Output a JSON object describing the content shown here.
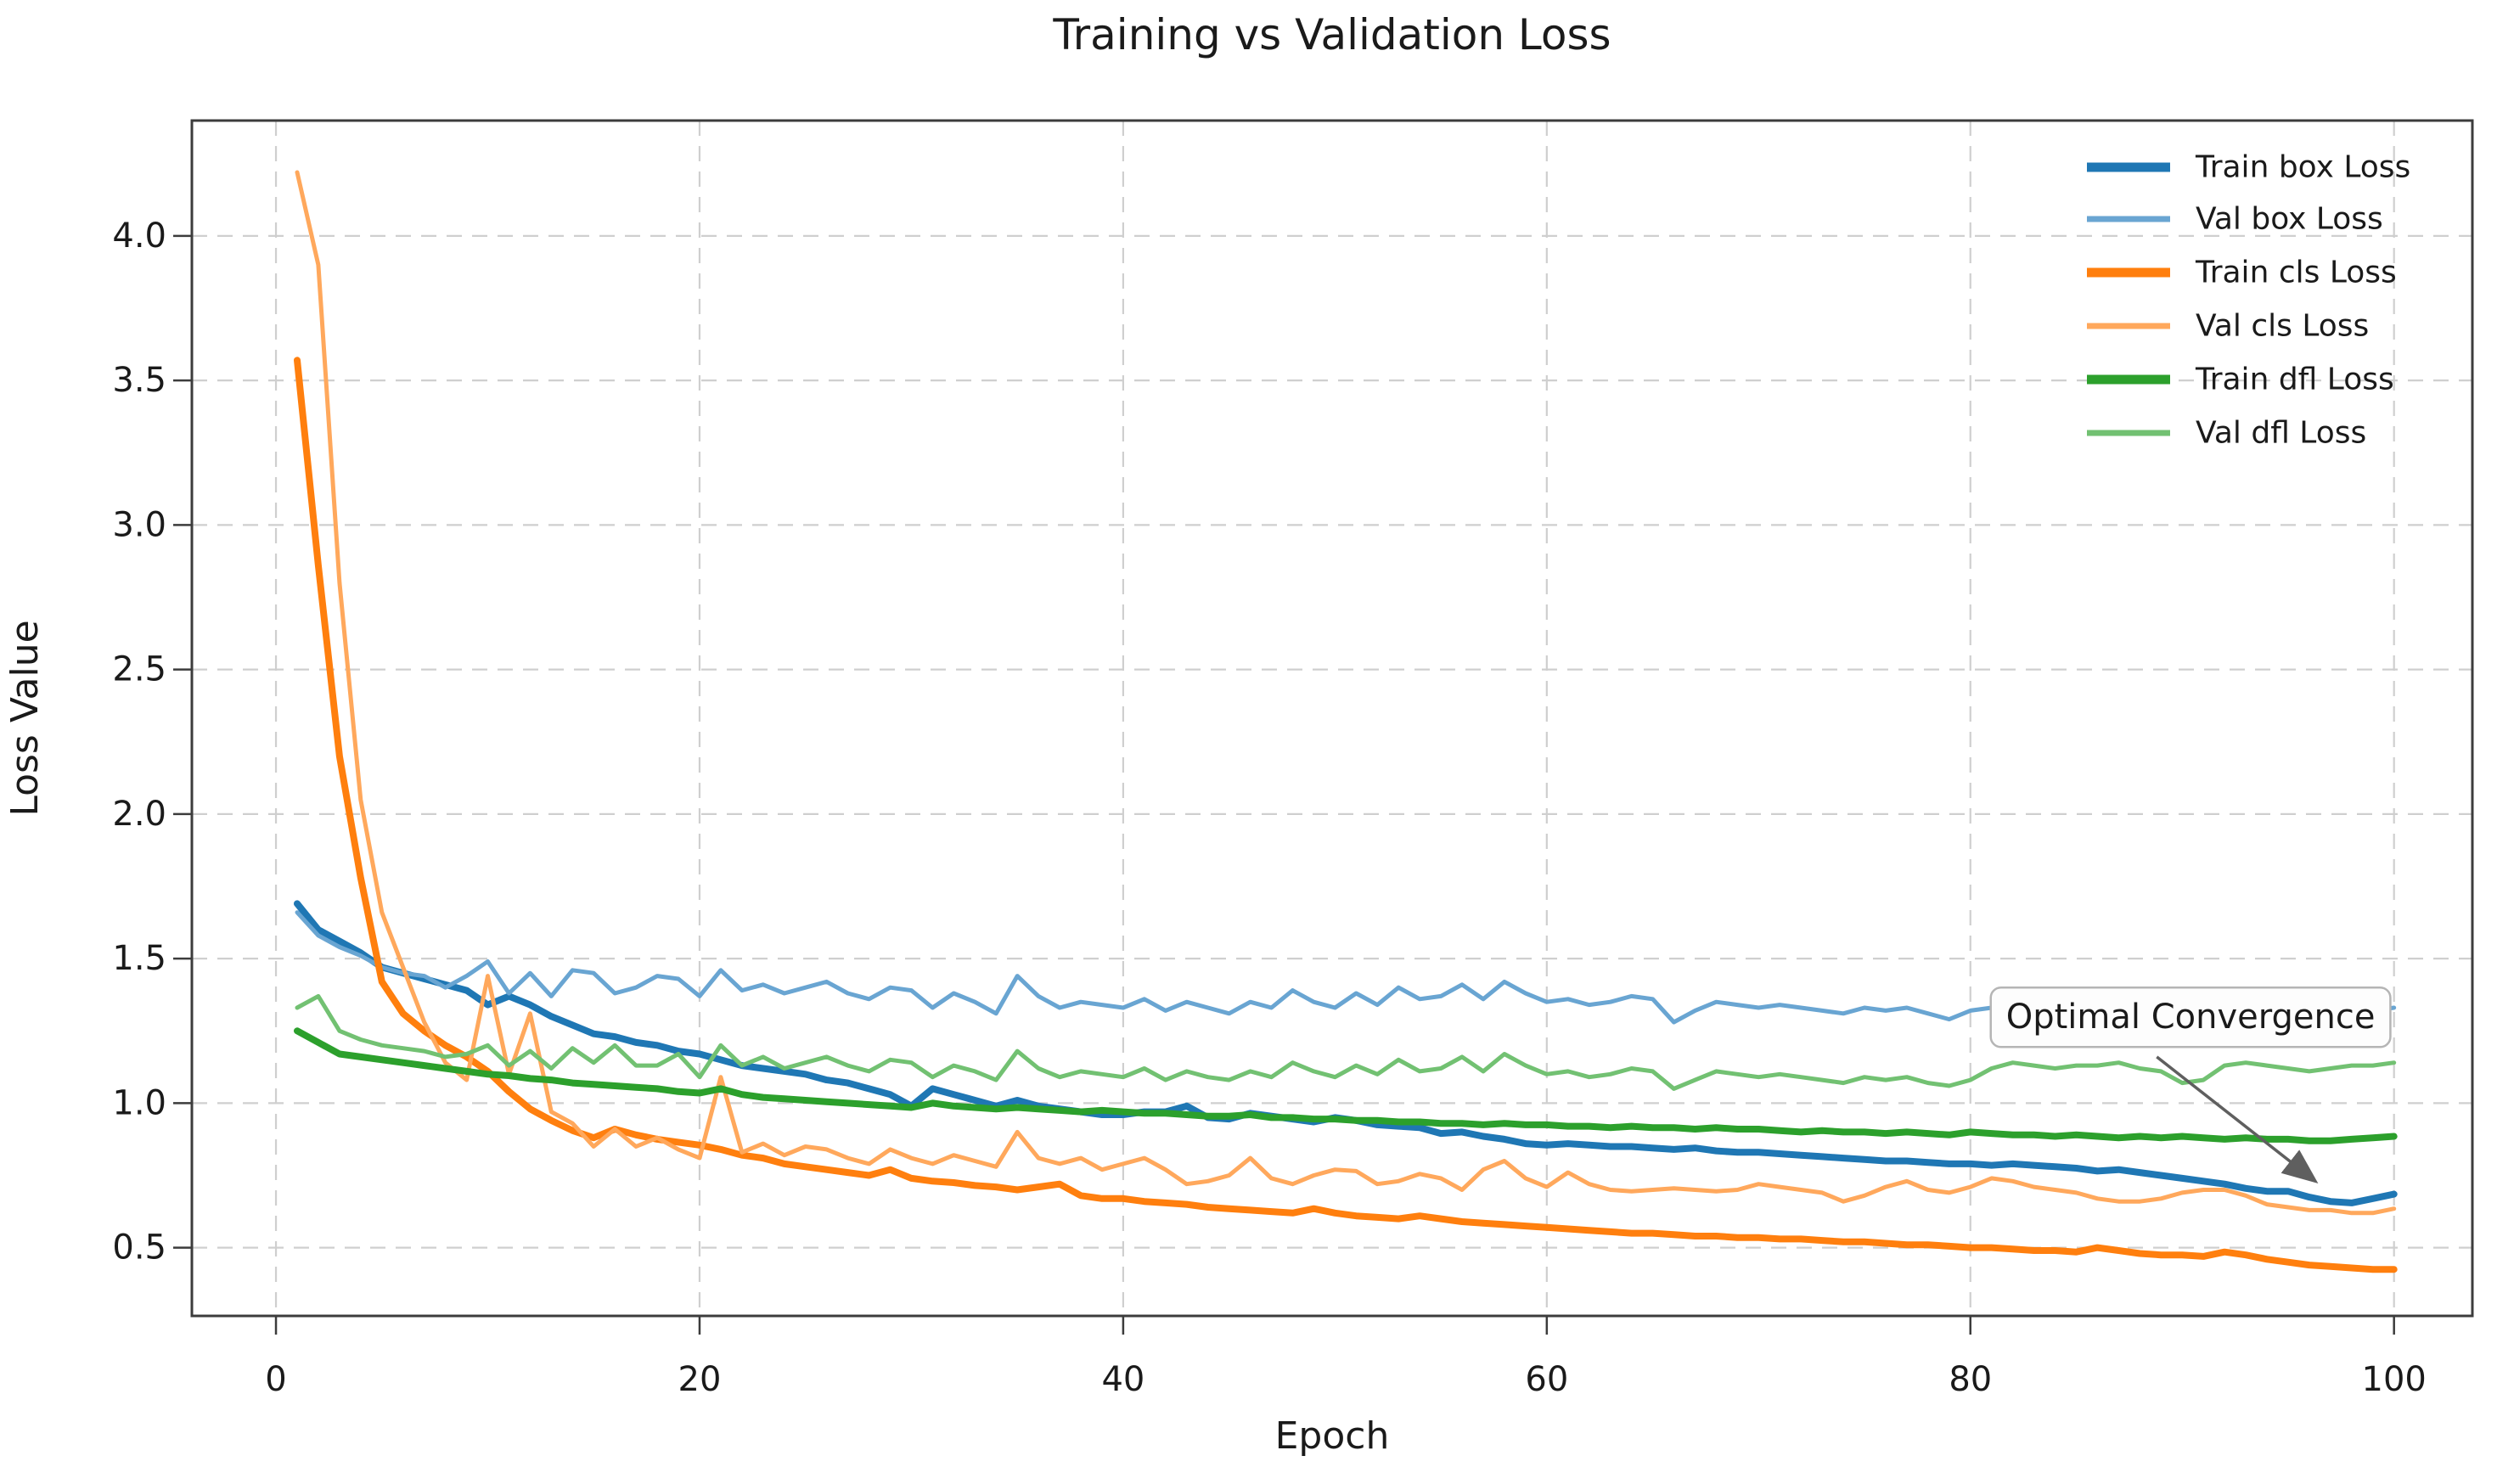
{
  "chart_data": {
    "type": "line",
    "title": "Training vs Validation Loss",
    "xlabel": "Epoch",
    "ylabel": "Loss Value",
    "legend_location": "upper right",
    "grid": true,
    "grid_style": "dashed",
    "axes": {
      "xlim": [
        -3.97,
        103.7
      ],
      "ylim": [
        0.264,
        4.399
      ],
      "xticks": [
        0,
        20,
        40,
        60,
        80,
        100
      ],
      "yticks": [
        0.5,
        1.0,
        1.5,
        2.0,
        2.5,
        3.0,
        3.5,
        4.0
      ]
    },
    "colors": {
      "train_box": "#1f77b4",
      "val_box": "#69a5d2",
      "train_cls": "#ff7f0e",
      "val_cls": "#ffa85c",
      "train_dfl": "#2ca02c",
      "val_dfl": "#72c172",
      "annotation_arrow": "#5f5f5f",
      "grid": "#cfcfcf",
      "spine": "#3c3c3c"
    },
    "annotation": {
      "text": "Optimal Convergence",
      "target_epoch": 96.2,
      "target_value": 0.735,
      "arrow_start_epoch": 88.8,
      "arrow_start_value": 1.16,
      "text_epoch": 80.8,
      "text_value": 1.3
    },
    "epochs": [
      1,
      2,
      3,
      4,
      5,
      6,
      7,
      8,
      9,
      10,
      11,
      12,
      13,
      14,
      15,
      16,
      17,
      18,
      19,
      20,
      21,
      22,
      23,
      24,
      25,
      26,
      27,
      28,
      29,
      30,
      31,
      32,
      33,
      34,
      35,
      36,
      37,
      38,
      39,
      40,
      41,
      42,
      43,
      44,
      45,
      46,
      47,
      48,
      49,
      50,
      51,
      52,
      53,
      54,
      55,
      56,
      57,
      58,
      59,
      60,
      61,
      62,
      63,
      64,
      65,
      66,
      67,
      68,
      69,
      70,
      71,
      72,
      73,
      74,
      75,
      76,
      77,
      78,
      79,
      80,
      81,
      82,
      83,
      84,
      85,
      86,
      87,
      88,
      89,
      90,
      91,
      92,
      93,
      94,
      95,
      96,
      97,
      98,
      99,
      100
    ],
    "series": [
      {
        "name": "Train box Loss",
        "key": "train_box",
        "color": "#1f77b4",
        "linewidth": 8,
        "values": [
          1.69,
          1.6,
          1.56,
          1.52,
          1.47,
          1.45,
          1.43,
          1.41,
          1.39,
          1.34,
          1.37,
          1.34,
          1.3,
          1.27,
          1.24,
          1.23,
          1.21,
          1.2,
          1.18,
          1.17,
          1.15,
          1.13,
          1.12,
          1.11,
          1.1,
          1.08,
          1.07,
          1.05,
          1.03,
          0.99,
          1.05,
          1.03,
          1.01,
          0.99,
          1.01,
          0.99,
          0.98,
          0.97,
          0.96,
          0.96,
          0.97,
          0.97,
          0.99,
          0.95,
          0.945,
          0.965,
          0.955,
          0.945,
          0.935,
          0.95,
          0.94,
          0.925,
          0.92,
          0.915,
          0.895,
          0.9,
          0.885,
          0.875,
          0.86,
          0.855,
          0.86,
          0.855,
          0.85,
          0.85,
          0.845,
          0.84,
          0.845,
          0.835,
          0.83,
          0.83,
          0.825,
          0.82,
          0.815,
          0.81,
          0.805,
          0.8,
          0.8,
          0.795,
          0.79,
          0.79,
          0.785,
          0.79,
          0.785,
          0.78,
          0.775,
          0.765,
          0.77,
          0.76,
          0.75,
          0.74,
          0.73,
          0.72,
          0.705,
          0.695,
          0.695,
          0.675,
          0.66,
          0.655,
          0.67,
          0.685
        ]
      },
      {
        "name": "Val box Loss",
        "key": "val_box",
        "color": "#69a5d2",
        "linewidth": 5,
        "values": [
          1.66,
          1.58,
          1.54,
          1.51,
          1.47,
          1.45,
          1.44,
          1.4,
          1.44,
          1.49,
          1.38,
          1.45,
          1.37,
          1.46,
          1.45,
          1.38,
          1.4,
          1.44,
          1.43,
          1.37,
          1.46,
          1.39,
          1.41,
          1.38,
          1.4,
          1.42,
          1.38,
          1.36,
          1.4,
          1.39,
          1.33,
          1.38,
          1.35,
          1.31,
          1.44,
          1.37,
          1.33,
          1.35,
          1.34,
          1.33,
          1.36,
          1.32,
          1.35,
          1.33,
          1.31,
          1.35,
          1.33,
          1.39,
          1.35,
          1.33,
          1.38,
          1.34,
          1.4,
          1.36,
          1.37,
          1.41,
          1.36,
          1.42,
          1.38,
          1.35,
          1.36,
          1.34,
          1.35,
          1.37,
          1.36,
          1.28,
          1.32,
          1.35,
          1.34,
          1.33,
          1.34,
          1.33,
          1.32,
          1.31,
          1.33,
          1.32,
          1.33,
          1.31,
          1.29,
          1.32,
          1.33,
          1.34,
          1.33,
          1.32,
          1.33,
          1.33,
          1.34,
          1.32,
          1.31,
          1.27,
          1.28,
          1.33,
          1.34,
          1.33,
          1.32,
          1.31,
          1.32,
          1.33,
          1.32,
          1.33
        ]
      },
      {
        "name": "Train cls Loss",
        "key": "train_cls",
        "color": "#ff7f0e",
        "linewidth": 8,
        "values": [
          3.57,
          2.86,
          2.2,
          1.78,
          1.42,
          1.31,
          1.25,
          1.2,
          1.16,
          1.11,
          1.04,
          0.98,
          0.94,
          0.905,
          0.88,
          0.91,
          0.89,
          0.875,
          0.865,
          0.855,
          0.84,
          0.82,
          0.81,
          0.79,
          0.78,
          0.77,
          0.76,
          0.75,
          0.77,
          0.74,
          0.73,
          0.725,
          0.715,
          0.71,
          0.7,
          0.71,
          0.72,
          0.68,
          0.67,
          0.67,
          0.66,
          0.655,
          0.65,
          0.64,
          0.635,
          0.63,
          0.625,
          0.62,
          0.635,
          0.62,
          0.61,
          0.605,
          0.6,
          0.61,
          0.6,
          0.59,
          0.585,
          0.58,
          0.575,
          0.57,
          0.565,
          0.56,
          0.555,
          0.55,
          0.55,
          0.545,
          0.54,
          0.54,
          0.535,
          0.535,
          0.53,
          0.53,
          0.525,
          0.52,
          0.52,
          0.515,
          0.51,
          0.51,
          0.505,
          0.5,
          0.5,
          0.495,
          0.49,
          0.49,
          0.485,
          0.5,
          0.49,
          0.48,
          0.475,
          0.475,
          0.47,
          0.485,
          0.475,
          0.46,
          0.45,
          0.44,
          0.435,
          0.43,
          0.425,
          0.425
        ]
      },
      {
        "name": "Val cls Loss",
        "key": "val_cls",
        "color": "#ffa85c",
        "linewidth": 5,
        "values": [
          4.22,
          3.9,
          2.8,
          2.05,
          1.66,
          1.47,
          1.28,
          1.14,
          1.08,
          1.44,
          1.1,
          1.31,
          0.97,
          0.93,
          0.85,
          0.91,
          0.85,
          0.88,
          0.84,
          0.81,
          1.09,
          0.83,
          0.86,
          0.82,
          0.85,
          0.84,
          0.81,
          0.79,
          0.84,
          0.81,
          0.79,
          0.82,
          0.8,
          0.78,
          0.9,
          0.81,
          0.79,
          0.81,
          0.77,
          0.79,
          0.81,
          0.77,
          0.72,
          0.73,
          0.75,
          0.81,
          0.74,
          0.72,
          0.75,
          0.77,
          0.765,
          0.72,
          0.73,
          0.755,
          0.74,
          0.7,
          0.77,
          0.8,
          0.74,
          0.71,
          0.76,
          0.72,
          0.7,
          0.695,
          0.7,
          0.705,
          0.7,
          0.695,
          0.7,
          0.72,
          0.71,
          0.7,
          0.69,
          0.66,
          0.68,
          0.71,
          0.73,
          0.7,
          0.69,
          0.71,
          0.74,
          0.73,
          0.71,
          0.7,
          0.69,
          0.67,
          0.66,
          0.66,
          0.67,
          0.69,
          0.7,
          0.7,
          0.68,
          0.65,
          0.64,
          0.63,
          0.63,
          0.62,
          0.62,
          0.635
        ]
      },
      {
        "name": "Train dfl Loss",
        "key": "train_dfl",
        "color": "#2ca02c",
        "linewidth": 8,
        "values": [
          1.25,
          1.21,
          1.17,
          1.16,
          1.15,
          1.14,
          1.13,
          1.12,
          1.11,
          1.1,
          1.095,
          1.085,
          1.08,
          1.07,
          1.065,
          1.06,
          1.055,
          1.05,
          1.04,
          1.035,
          1.05,
          1.03,
          1.02,
          1.015,
          1.01,
          1.005,
          1.0,
          0.995,
          0.99,
          0.985,
          1.0,
          0.99,
          0.985,
          0.98,
          0.985,
          0.98,
          0.975,
          0.97,
          0.975,
          0.97,
          0.965,
          0.965,
          0.96,
          0.955,
          0.955,
          0.96,
          0.95,
          0.95,
          0.945,
          0.945,
          0.94,
          0.94,
          0.935,
          0.935,
          0.93,
          0.93,
          0.925,
          0.93,
          0.925,
          0.925,
          0.92,
          0.92,
          0.915,
          0.92,
          0.915,
          0.915,
          0.91,
          0.915,
          0.91,
          0.91,
          0.905,
          0.9,
          0.905,
          0.9,
          0.9,
          0.895,
          0.9,
          0.895,
          0.89,
          0.9,
          0.895,
          0.89,
          0.89,
          0.885,
          0.89,
          0.885,
          0.88,
          0.885,
          0.88,
          0.885,
          0.88,
          0.875,
          0.88,
          0.875,
          0.875,
          0.87,
          0.87,
          0.875,
          0.88,
          0.885
        ]
      },
      {
        "name": "Val dfl Loss",
        "key": "val_dfl",
        "color": "#72c172",
        "linewidth": 5,
        "values": [
          1.33,
          1.37,
          1.25,
          1.22,
          1.2,
          1.19,
          1.18,
          1.16,
          1.17,
          1.2,
          1.13,
          1.18,
          1.12,
          1.19,
          1.14,
          1.2,
          1.13,
          1.13,
          1.17,
          1.09,
          1.2,
          1.13,
          1.16,
          1.12,
          1.14,
          1.16,
          1.13,
          1.11,
          1.15,
          1.14,
          1.09,
          1.13,
          1.11,
          1.08,
          1.18,
          1.12,
          1.09,
          1.11,
          1.1,
          1.09,
          1.12,
          1.08,
          1.11,
          1.09,
          1.08,
          1.11,
          1.09,
          1.14,
          1.11,
          1.09,
          1.13,
          1.1,
          1.15,
          1.11,
          1.12,
          1.16,
          1.11,
          1.17,
          1.13,
          1.1,
          1.11,
          1.09,
          1.1,
          1.12,
          1.11,
          1.05,
          1.08,
          1.11,
          1.1,
          1.09,
          1.1,
          1.09,
          1.08,
          1.07,
          1.09,
          1.08,
          1.09,
          1.07,
          1.06,
          1.08,
          1.12,
          1.14,
          1.13,
          1.12,
          1.13,
          1.13,
          1.14,
          1.12,
          1.11,
          1.07,
          1.08,
          1.13,
          1.14,
          1.13,
          1.12,
          1.11,
          1.12,
          1.13,
          1.13,
          1.14
        ]
      }
    ]
  }
}
